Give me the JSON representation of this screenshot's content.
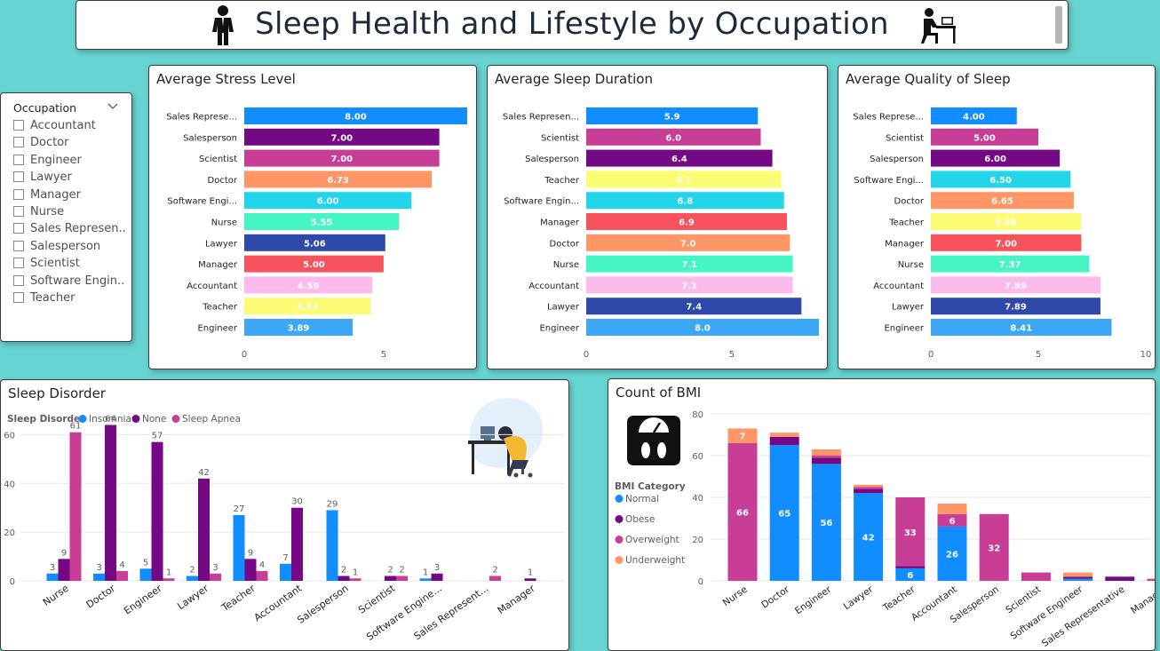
{
  "header": {
    "title": "Sleep Health and Lifestyle by Occupation"
  },
  "slicer": {
    "title": "Occupation",
    "items": [
      "Accountant",
      "Doctor",
      "Engineer",
      "Lawyer",
      "Manager",
      "Nurse",
      "Sales Represen...",
      "Salesperson",
      "Scientist",
      "Software Engin...",
      "Teacher"
    ]
  },
  "colors": {
    "Sales Representative": "#118dff",
    "Salesperson": "#750985",
    "Scientist": "#c83d95",
    "Doctor": "#fe9666",
    "Software Engineer": "#22d5e8",
    "Nurse": "#46f5c4",
    "Lawyer": "#2f49ab",
    "Manager": "#f7535d",
    "Accountant": "#fdbaec",
    "Teacher": "#fbfb74",
    "Engineer": "#3ea7f5",
    "insomnia": "#118dff",
    "none": "#750985",
    "sleep_apnea": "#c83d95",
    "normal": "#118dff",
    "obese": "#750985",
    "overweight": "#c83d95",
    "underweight": "#fe9666"
  },
  "chart_data": [
    {
      "id": "stress",
      "type": "bar",
      "orientation": "horizontal",
      "title": "Average Stress Level",
      "categories": [
        "Sales Representative",
        "Salesperson",
        "Scientist",
        "Doctor",
        "Software Engineer",
        "Nurse",
        "Lawyer",
        "Manager",
        "Accountant",
        "Teacher",
        "Engineer"
      ],
      "labels": [
        "Sales Represe...",
        "Salesperson",
        "Scientist",
        "Doctor",
        "Software Engi...",
        "Nurse",
        "Lawyer",
        "Manager",
        "Accountant",
        "Teacher",
        "Engineer"
      ],
      "values": [
        8.0,
        7.0,
        7.0,
        6.73,
        6.0,
        5.55,
        5.06,
        5.0,
        4.59,
        4.53,
        3.89
      ],
      "value_labels": [
        "8.00",
        "7.00",
        "7.00",
        "6.73",
        "6.00",
        "5.55",
        "5.06",
        "5.00",
        "4.59",
        "4.53",
        "3.89"
      ],
      "xlim": [
        0,
        8
      ],
      "ticks": [
        "0",
        "5"
      ]
    },
    {
      "id": "duration",
      "type": "bar",
      "orientation": "horizontal",
      "title": "Average Sleep Duration",
      "categories": [
        "Sales Representative",
        "Scientist",
        "Salesperson",
        "Teacher",
        "Software Engineer",
        "Manager",
        "Doctor",
        "Nurse",
        "Accountant",
        "Lawyer",
        "Engineer"
      ],
      "labels": [
        "Sales Represen...",
        "Scientist",
        "Salesperson",
        "Teacher",
        "Software Engin...",
        "Manager",
        "Doctor",
        "Nurse",
        "Accountant",
        "Lawyer",
        "Engineer"
      ],
      "values": [
        5.9,
        6.0,
        6.4,
        6.7,
        6.8,
        6.9,
        7.0,
        7.1,
        7.1,
        7.4,
        8.0
      ],
      "value_labels": [
        "5.9",
        "6.0",
        "6.4",
        "6.7",
        "6.8",
        "6.9",
        "7.0",
        "7.1",
        "7.1",
        "7.4",
        "8.0"
      ],
      "xlim": [
        0,
        8
      ],
      "ticks": [
        "0",
        "5"
      ]
    },
    {
      "id": "quality",
      "type": "bar",
      "orientation": "horizontal",
      "title": "Average Quality of Sleep",
      "categories": [
        "Sales Representative",
        "Scientist",
        "Salesperson",
        "Software Engineer",
        "Doctor",
        "Teacher",
        "Manager",
        "Nurse",
        "Accountant",
        "Lawyer",
        "Engineer"
      ],
      "labels": [
        "Sales Represe...",
        "Scientist",
        "Salesperson",
        "Software Engi...",
        "Doctor",
        "Teacher",
        "Manager",
        "Nurse",
        "Accountant",
        "Lawyer",
        "Engineer"
      ],
      "values": [
        4.0,
        5.0,
        6.0,
        6.5,
        6.65,
        6.98,
        7.0,
        7.37,
        7.89,
        7.89,
        8.41
      ],
      "value_labels": [
        "4.00",
        "5.00",
        "6.00",
        "6.50",
        "6.65",
        "6.98",
        "7.00",
        "7.37",
        "7.89",
        "7.89",
        "8.41"
      ],
      "xlim": [
        0,
        10
      ],
      "ticks": [
        "0",
        "5",
        "10"
      ]
    },
    {
      "id": "disorder",
      "type": "bar",
      "orientation": "vertical",
      "grouped": true,
      "title": "Sleep Disorder",
      "legend_title": "Sleep Disorder",
      "categories": [
        "Nurse",
        "Doctor",
        "Engineer",
        "Lawyer",
        "Teacher",
        "Accountant",
        "Salesperson",
        "Scientist",
        "Software Engine...",
        "Sales Represent...",
        "Manager"
      ],
      "series": [
        {
          "name": "Insomnia",
          "values": [
            3,
            3,
            5,
            2,
            27,
            7,
            29,
            null,
            1,
            null,
            null
          ]
        },
        {
          "name": "None",
          "values": [
            9,
            64,
            57,
            42,
            9,
            30,
            2,
            2,
            3,
            null,
            1
          ]
        },
        {
          "name": "Sleep Apnea",
          "values": [
            61,
            4,
            1,
            3,
            4,
            null,
            1,
            2,
            null,
            2,
            null
          ]
        }
      ],
      "ylim": [
        0,
        70
      ],
      "yticks": [
        "0",
        "20",
        "40",
        "60"
      ]
    },
    {
      "id": "bmi",
      "type": "bar",
      "orientation": "vertical",
      "stacked": true,
      "title": "Count of BMI",
      "legend_title": "BMI Category",
      "categories": [
        "Nurse",
        "Doctor",
        "Engineer",
        "Lawyer",
        "Teacher",
        "Accountant",
        "Salesperson",
        "Scientist",
        "Software Engineer",
        "Sales Representative",
        "Manager"
      ],
      "series": [
        {
          "name": "Normal",
          "values": [
            0,
            65,
            56,
            42,
            6,
            26,
            0,
            0,
            1,
            0,
            0
          ]
        },
        {
          "name": "Obese",
          "values": [
            0,
            4,
            3,
            2,
            1,
            0,
            0,
            0,
            1,
            2,
            0
          ]
        },
        {
          "name": "Overweight",
          "values": [
            66,
            0,
            1,
            1,
            33,
            6,
            32,
            4,
            0,
            0,
            1
          ]
        },
        {
          "name": "Underweight",
          "values": [
            7,
            2,
            3,
            1,
            0,
            5,
            0,
            0,
            2,
            0,
            0
          ]
        }
      ],
      "segment_labels": {
        "Normal": [
          "",
          "65",
          "56",
          "42",
          "6",
          "26",
          "",
          "",
          "",
          "",
          ""
        ],
        "Overweight": [
          "66",
          "",
          "",
          "",
          "33",
          "6",
          "32",
          "",
          "",
          "",
          ""
        ],
        "Underweight": [
          "7",
          "",
          "",
          "",
          "",
          "",
          "",
          "",
          "",
          "",
          ""
        ]
      },
      "ylim": [
        0,
        80
      ],
      "yticks": [
        "0",
        "20",
        "40",
        "60",
        "80"
      ]
    }
  ]
}
